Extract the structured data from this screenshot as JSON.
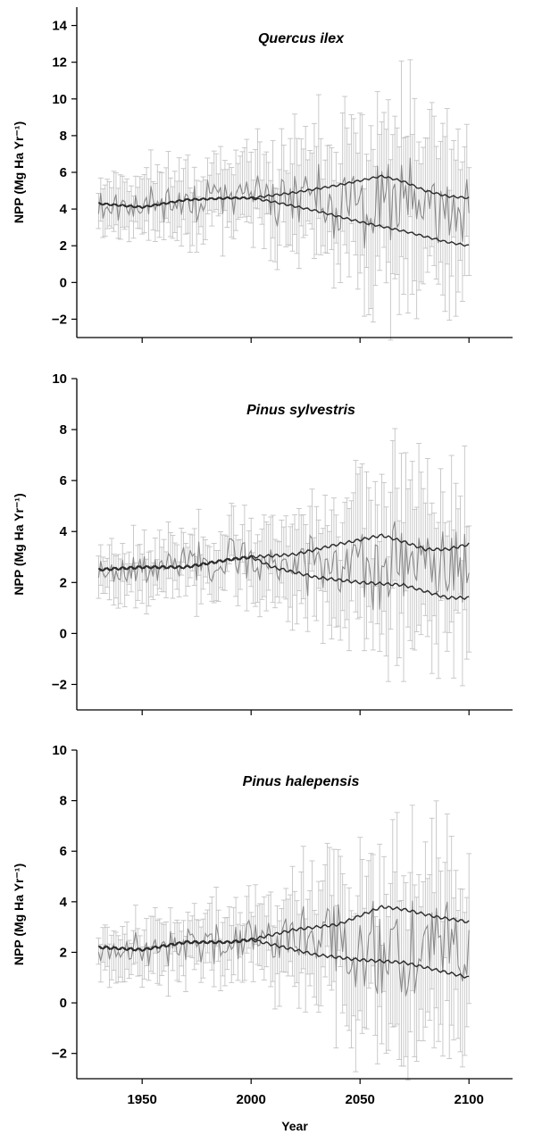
{
  "chart_data": [
    {
      "type": "line",
      "title": "Quercus ilex",
      "xlabel": "",
      "ylabel": "NPP (Mg Ha Yr⁻¹)",
      "xlim": [
        1920,
        2120
      ],
      "ylim": [
        -3,
        15
      ],
      "xticks": [
        1950,
        2000,
        2050,
        2100
      ],
      "yticks": [
        -2,
        0,
        2,
        4,
        6,
        8,
        10,
        12,
        14
      ],
      "show_xtick_labels": false,
      "grid": false,
      "colors": {
        "annual": "#888888",
        "trend": "#2a2a2a",
        "error": "#c4c4c4"
      },
      "series": [
        {
          "values": [
            [
              1930,
              4.3
            ],
            [
              1950,
              4.1
            ],
            [
              1970,
              4.5
            ],
            [
              1990,
              4.6
            ],
            [
              2000,
              4.6
            ],
            [
              2020,
              4.9
            ],
            [
              2040,
              5.3
            ],
            [
              2060,
              5.8
            ],
            [
              2070,
              5.5
            ],
            [
              2080,
              5.0
            ],
            [
              2090,
              4.7
            ],
            [
              2100,
              4.6
            ]
          ]
        },
        {
          "values": [
            [
              1930,
              4.3
            ],
            [
              1950,
              4.1
            ],
            [
              1970,
              4.5
            ],
            [
              1990,
              4.6
            ],
            [
              2000,
              4.6
            ],
            [
              2010,
              4.4
            ],
            [
              2030,
              3.9
            ],
            [
              2050,
              3.3
            ],
            [
              2070,
              2.8
            ],
            [
              2090,
              2.2
            ],
            [
              2100,
              2.0
            ]
          ]
        }
      ],
      "annual": {
        "x_range": [
          1930,
          2100
        ],
        "center": [
          [
            1930,
            4.3
          ],
          [
            1960,
            4.4
          ],
          [
            2000,
            4.6
          ],
          [
            2030,
            4.5
          ],
          [
            2060,
            4.5
          ],
          [
            2100,
            3.3
          ]
        ],
        "amp": [
          [
            1930,
            0.8
          ],
          [
            2000,
            1.0
          ],
          [
            2060,
            2.2
          ],
          [
            2100,
            1.8
          ]
        ],
        "err": [
          [
            1930,
            1.6
          ],
          [
            2000,
            2.2
          ],
          [
            2070,
            5.0
          ],
          [
            2100,
            4.3
          ]
        ],
        "seed": 11
      }
    },
    {
      "type": "line",
      "title": "Pinus sylvestris",
      "xlabel": "",
      "ylabel": "NPP (Mg Ha Yr⁻¹)",
      "xlim": [
        1920,
        2120
      ],
      "ylim": [
        -3,
        10
      ],
      "xticks": [
        1950,
        2000,
        2050,
        2100
      ],
      "yticks": [
        -2,
        0,
        2,
        4,
        6,
        8,
        10
      ],
      "show_xtick_labels": false,
      "grid": false,
      "colors": {
        "annual": "#888888",
        "trend": "#2a2a2a",
        "error": "#c4c4c4"
      },
      "series": [
        {
          "values": [
            [
              1930,
              2.5
            ],
            [
              1950,
              2.6
            ],
            [
              1970,
              2.6
            ],
            [
              1990,
              2.9
            ],
            [
              2000,
              3.0
            ],
            [
              2020,
              3.1
            ],
            [
              2040,
              3.5
            ],
            [
              2060,
              3.85
            ],
            [
              2070,
              3.6
            ],
            [
              2080,
              3.3
            ],
            [
              2090,
              3.3
            ],
            [
              2100,
              3.5
            ]
          ]
        },
        {
          "values": [
            [
              1930,
              2.5
            ],
            [
              1950,
              2.6
            ],
            [
              1970,
              2.6
            ],
            [
              1990,
              2.9
            ],
            [
              2000,
              3.0
            ],
            [
              2010,
              2.6
            ],
            [
              2030,
              2.2
            ],
            [
              2050,
              2.0
            ],
            [
              2070,
              1.9
            ],
            [
              2090,
              1.4
            ],
            [
              2100,
              1.4
            ]
          ]
        }
      ],
      "annual": {
        "x_range": [
          1930,
          2100
        ],
        "center": [
          [
            1930,
            2.5
          ],
          [
            1960,
            2.6
          ],
          [
            2000,
            3.0
          ],
          [
            2030,
            2.7
          ],
          [
            2060,
            2.8
          ],
          [
            2100,
            2.4
          ]
        ],
        "amp": [
          [
            1930,
            0.5
          ],
          [
            2000,
            0.7
          ],
          [
            2060,
            1.6
          ],
          [
            2100,
            1.3
          ]
        ],
        "err": [
          [
            1930,
            1.0
          ],
          [
            2000,
            1.4
          ],
          [
            2070,
            3.6
          ],
          [
            2100,
            3.0
          ]
        ],
        "seed": 23
      }
    },
    {
      "type": "line",
      "title": "Pinus halepensis",
      "xlabel": "Year",
      "ylabel": "NPP (Mg Ha Yr⁻¹)",
      "xlim": [
        1920,
        2120
      ],
      "ylim": [
        -3,
        10
      ],
      "xticks": [
        1950,
        2000,
        2050,
        2100
      ],
      "yticks": [
        -2,
        0,
        2,
        4,
        6,
        8,
        10
      ],
      "show_xtick_labels": true,
      "grid": false,
      "colors": {
        "annual": "#888888",
        "trend": "#2a2a2a",
        "error": "#c4c4c4"
      },
      "series": [
        {
          "values": [
            [
              1930,
              2.2
            ],
            [
              1950,
              2.1
            ],
            [
              1970,
              2.4
            ],
            [
              1990,
              2.4
            ],
            [
              2000,
              2.5
            ],
            [
              2020,
              2.9
            ],
            [
              2040,
              3.1
            ],
            [
              2060,
              3.8
            ],
            [
              2070,
              3.7
            ],
            [
              2085,
              3.4
            ],
            [
              2100,
              3.2
            ]
          ]
        },
        {
          "values": [
            [
              1930,
              2.2
            ],
            [
              1950,
              2.1
            ],
            [
              1970,
              2.4
            ],
            [
              1990,
              2.4
            ],
            [
              2000,
              2.5
            ],
            [
              2010,
              2.3
            ],
            [
              2030,
              1.9
            ],
            [
              2050,
              1.7
            ],
            [
              2070,
              1.6
            ],
            [
              2090,
              1.2
            ],
            [
              2100,
              1.0
            ]
          ]
        }
      ],
      "annual": {
        "x_range": [
          1930,
          2100
        ],
        "center": [
          [
            1930,
            2.2
          ],
          [
            1960,
            2.2
          ],
          [
            2000,
            2.5
          ],
          [
            2030,
            2.4
          ],
          [
            2060,
            2.6
          ],
          [
            2100,
            2.1
          ]
        ],
        "amp": [
          [
            1930,
            0.5
          ],
          [
            2000,
            0.8
          ],
          [
            2060,
            1.8
          ],
          [
            2100,
            1.5
          ]
        ],
        "err": [
          [
            1930,
            1.0
          ],
          [
            2000,
            1.4
          ],
          [
            2070,
            4.0
          ],
          [
            2100,
            3.4
          ]
        ],
        "seed": 37
      }
    }
  ]
}
